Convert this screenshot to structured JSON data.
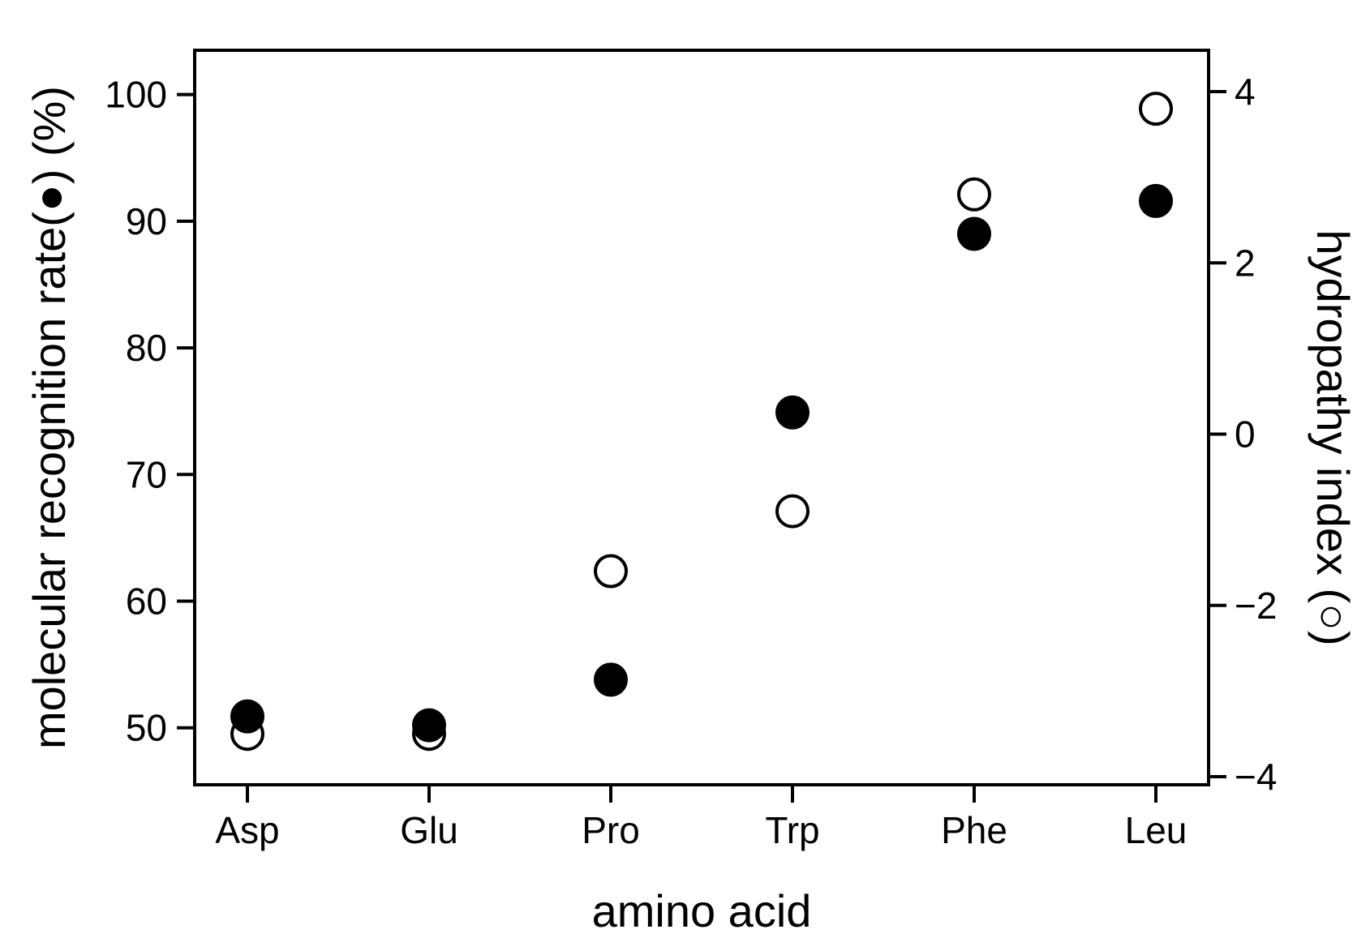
{
  "chart_data": {
    "type": "scatter",
    "categories": [
      "Asp",
      "Glu",
      "Pro",
      "Trp",
      "Phe",
      "Leu"
    ],
    "xlabel": "amino acid",
    "ylabel_left": "molecular recognition rate(●) (%)",
    "ylabel_right": "hydropathy index (○)",
    "y_left": {
      "range": [
        45.5,
        103.5
      ],
      "ticks": [
        50,
        60,
        70,
        80,
        90,
        100
      ],
      "tick_labels": [
        "50",
        "60",
        "70",
        "80",
        "90",
        "100"
      ]
    },
    "y_right": {
      "range": [
        -4.0,
        4.5
      ],
      "ticks": [
        -4,
        -2,
        0,
        2,
        4
      ],
      "tick_labels": [
        "−4",
        "−2",
        "0",
        "2",
        "4"
      ]
    },
    "series": [
      {
        "marker": "filled-circle",
        "axis": "left",
        "values": [
          50.9,
          50.2,
          53.8,
          74.9,
          89.0,
          91.6
        ]
      },
      {
        "marker": "open-circle",
        "axis": "right",
        "values": [
          -3.5,
          -3.5,
          -1.6,
          -0.9,
          2.8,
          3.8
        ]
      }
    ],
    "grid": false,
    "legend": "none"
  }
}
